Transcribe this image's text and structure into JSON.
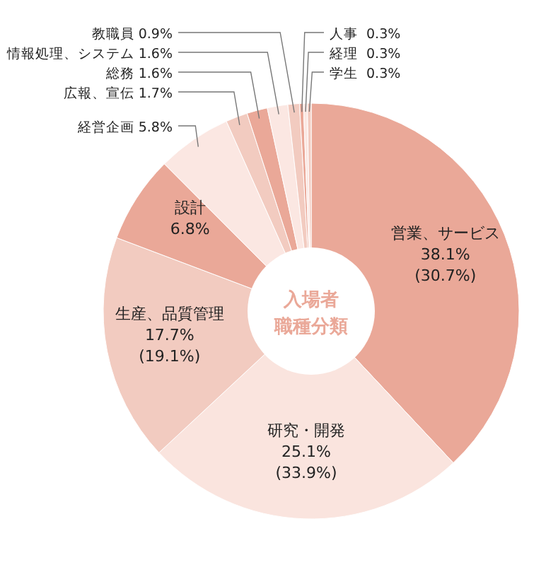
{
  "chart_data": {
    "type": "donut",
    "title": "入場者",
    "subtitle": "職種分類",
    "categories": [
      "営業、サービス",
      "研究・開発",
      "生産、品質管理",
      "設計",
      "経営企画",
      "広報、宣伝",
      "総務",
      "情報処理、システム",
      "教職員",
      "人事",
      "経理",
      "学生"
    ],
    "values": [
      38.1,
      25.1,
      17.7,
      6.8,
      5.8,
      1.7,
      1.6,
      1.6,
      0.9,
      0.3,
      0.3,
      0.3
    ],
    "value_labels": [
      "38.1%\n(30.7%)",
      "25.1%\n(33.9%)",
      "17.7%\n(19.1%)",
      "6.8%",
      "5.8%",
      "1.7%",
      "1.6%",
      "1.6%",
      "0.9%",
      "0.3%",
      "0.3%",
      "0.3%"
    ],
    "colors": [
      "#eaa898",
      "#fae4de",
      "#f2cbc0",
      "#eaa898",
      "#fbe7e2",
      "#f2cbc0",
      "#eaa898",
      "#fbe7e2",
      "#f2cbc0",
      "#eaa898",
      "#fbe7e2",
      "#f2cbc0"
    ]
  }
}
